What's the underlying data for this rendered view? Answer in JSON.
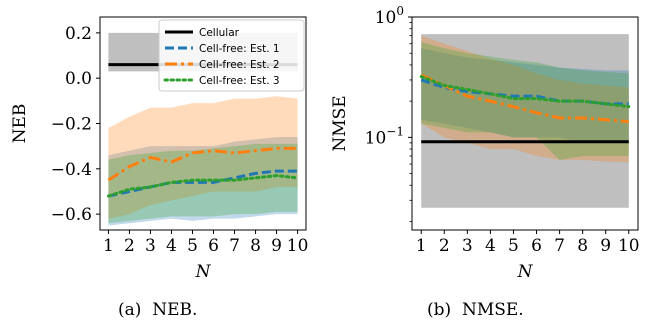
{
  "chart_data": [
    {
      "type": "line",
      "caption": "(a)  NEB.",
      "xlabel": "N",
      "ylabel": "NEB",
      "x": [
        1,
        2,
        3,
        4,
        5,
        6,
        7,
        8,
        9,
        10
      ],
      "xlim": [
        0.6,
        10.4
      ],
      "ylim": [
        -0.67,
        0.27
      ],
      "yticks": [
        0.2,
        0.0,
        -0.2,
        -0.4,
        -0.6
      ],
      "ytick_labels": [
        "0.2",
        "0.0",
        "−0.2",
        "−0.4",
        "−0.6"
      ],
      "grid": false,
      "legend": {
        "placement": "top-right"
      },
      "series": [
        {
          "name": "Cellular",
          "color": "#000000",
          "style": "solid",
          "values": [
            0.06,
            0.06,
            0.06,
            0.06,
            0.06,
            0.06,
            0.06,
            0.06,
            0.06,
            0.06
          ],
          "band_low": [
            0.03,
            0.03,
            0.03,
            0.03,
            0.03,
            0.03,
            0.03,
            0.03,
            0.03,
            0.03
          ],
          "band_high": [
            0.2,
            0.2,
            0.2,
            0.2,
            0.2,
            0.2,
            0.2,
            0.2,
            0.2,
            0.2
          ]
        },
        {
          "name": "Cell-free: Est. 1",
          "color": "#1f77b4",
          "style": "dashed",
          "values": [
            -0.52,
            -0.5,
            -0.48,
            -0.46,
            -0.46,
            -0.46,
            -0.44,
            -0.42,
            -0.41,
            -0.41
          ],
          "band_low": [
            -0.65,
            -0.64,
            -0.63,
            -0.62,
            -0.63,
            -0.62,
            -0.62,
            -0.61,
            -0.6,
            -0.6
          ],
          "band_high": [
            -0.34,
            -0.32,
            -0.3,
            -0.3,
            -0.3,
            -0.3,
            -0.28,
            -0.27,
            -0.26,
            -0.26
          ]
        },
        {
          "name": "Cell-free: Est. 2",
          "color": "#ff7f0e",
          "style": "dashdot",
          "values": [
            -0.45,
            -0.39,
            -0.35,
            -0.37,
            -0.33,
            -0.32,
            -0.33,
            -0.32,
            -0.31,
            -0.31
          ],
          "band_low": [
            -0.62,
            -0.6,
            -0.56,
            -0.54,
            -0.52,
            -0.5,
            -0.5,
            -0.5,
            -0.48,
            -0.48
          ],
          "band_high": [
            -0.22,
            -0.17,
            -0.13,
            -0.13,
            -0.11,
            -0.11,
            -0.09,
            -0.09,
            -0.08,
            -0.09
          ]
        },
        {
          "name": "Cell-free: Est. 3",
          "color": "#2ca02c",
          "style": "dotted",
          "values": [
            -0.52,
            -0.49,
            -0.48,
            -0.46,
            -0.45,
            -0.45,
            -0.45,
            -0.44,
            -0.43,
            -0.44
          ],
          "band_low": [
            -0.64,
            -0.63,
            -0.62,
            -0.61,
            -0.61,
            -0.61,
            -0.6,
            -0.6,
            -0.59,
            -0.59
          ],
          "band_high": [
            -0.36,
            -0.34,
            -0.33,
            -0.32,
            -0.32,
            -0.31,
            -0.3,
            -0.29,
            -0.29,
            -0.29
          ]
        }
      ]
    },
    {
      "type": "line",
      "caption": "(b)  NMSE.",
      "xlabel": "N",
      "ylabel": "NMSE",
      "yscale": "log",
      "x": [
        1,
        2,
        3,
        4,
        5,
        6,
        7,
        8,
        9,
        10
      ],
      "xlim": [
        0.6,
        10.4
      ],
      "ylim": [
        0.017,
        1.0
      ],
      "yticks": [
        1.0,
        0.1
      ],
      "ytick_labels": [
        "10^0",
        "10^-1"
      ],
      "grid": false,
      "series": [
        {
          "name": "Cellular",
          "color": "#000000",
          "style": "solid",
          "values": [
            0.092,
            0.092,
            0.092,
            0.092,
            0.092,
            0.092,
            0.092,
            0.092,
            0.092,
            0.092
          ],
          "band_low": [
            0.026,
            0.026,
            0.026,
            0.026,
            0.026,
            0.026,
            0.026,
            0.026,
            0.026,
            0.026
          ],
          "band_high": [
            0.72,
            0.72,
            0.72,
            0.72,
            0.72,
            0.72,
            0.72,
            0.72,
            0.72,
            0.72
          ]
        },
        {
          "name": "Cell-free: Est. 1",
          "color": "#1f77b4",
          "style": "dashed",
          "values": [
            0.3,
            0.26,
            0.24,
            0.23,
            0.22,
            0.22,
            0.2,
            0.2,
            0.19,
            0.19
          ],
          "band_low": [
            0.14,
            0.13,
            0.12,
            0.11,
            0.1,
            0.1,
            0.1,
            0.09,
            0.09,
            0.09
          ],
          "band_high": [
            0.55,
            0.5,
            0.46,
            0.44,
            0.42,
            0.4,
            0.38,
            0.37,
            0.36,
            0.36
          ]
        },
        {
          "name": "Cell-free: Est. 2",
          "color": "#ff7f0e",
          "style": "dashdot",
          "values": [
            0.33,
            0.27,
            0.22,
            0.2,
            0.18,
            0.16,
            0.145,
            0.145,
            0.14,
            0.135
          ],
          "band_low": [
            0.13,
            0.1,
            0.09,
            0.08,
            0.08,
            0.07,
            0.065,
            0.065,
            0.063,
            0.062
          ],
          "band_high": [
            0.7,
            0.6,
            0.52,
            0.45,
            0.4,
            0.34,
            0.3,
            0.28,
            0.27,
            0.26
          ]
        },
        {
          "name": "Cell-free: Est. 3",
          "color": "#2ca02c",
          "style": "dotted",
          "values": [
            0.32,
            0.27,
            0.25,
            0.23,
            0.21,
            0.21,
            0.2,
            0.2,
            0.19,
            0.18
          ],
          "band_low": [
            0.13,
            0.12,
            0.11,
            0.11,
            0.1,
            0.1,
            0.065,
            0.07,
            0.07,
            0.07
          ],
          "band_high": [
            0.62,
            0.55,
            0.5,
            0.47,
            0.44,
            0.42,
            0.38,
            0.36,
            0.35,
            0.34
          ]
        }
      ]
    }
  ]
}
